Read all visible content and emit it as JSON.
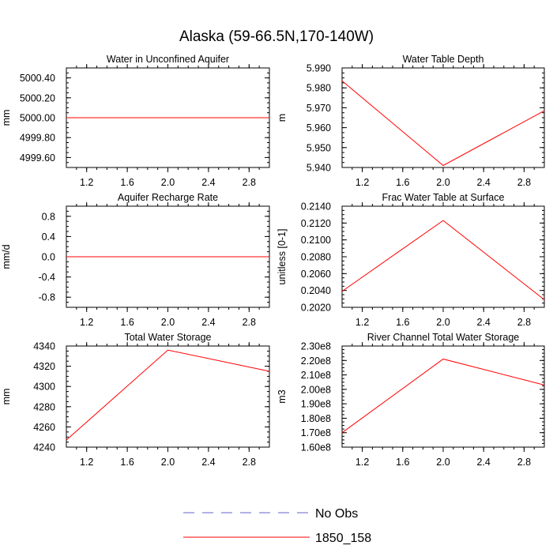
{
  "figure": {
    "title": "Alaska (59-66.5N,170-140W)"
  },
  "legend": {
    "placement": "bottom-center",
    "entries": [
      {
        "label": "No Obs",
        "color": "#6666cc",
        "style": "dashed"
      },
      {
        "label": "1850_158",
        "color": "#ff0000",
        "style": "solid"
      }
    ]
  },
  "chart_data": [
    {
      "type": "line",
      "title": "Water in Unconfined Aquifer",
      "ylabel": "mm",
      "xlim": [
        1.0,
        3.0
      ],
      "ylim": [
        4999.5,
        5000.5
      ],
      "xticks": [
        1.2,
        1.6,
        2.0,
        2.4,
        2.8
      ],
      "xtick_labels": [
        "1.2",
        "1.6",
        "2.0",
        "2.4",
        "2.8"
      ],
      "yticks": [
        4999.6,
        4999.8,
        5000.0,
        5000.2,
        5000.4
      ],
      "ytick_labels": [
        "4999.60",
        "4999.80",
        "5000.00",
        "5000.20",
        "5000.40"
      ],
      "series": [
        {
          "name": "1850_158",
          "x": [
            1,
            2,
            3
          ],
          "y": [
            5000.0,
            5000.0,
            5000.0
          ]
        }
      ]
    },
    {
      "type": "line",
      "title": "Water Table Depth",
      "ylabel": "m",
      "xlim": [
        1.0,
        3.0
      ],
      "ylim": [
        5.94,
        5.99
      ],
      "xticks": [
        1.2,
        1.6,
        2.0,
        2.4,
        2.8
      ],
      "xtick_labels": [
        "1.2",
        "1.6",
        "2.0",
        "2.4",
        "2.8"
      ],
      "yticks": [
        5.94,
        5.95,
        5.96,
        5.97,
        5.98,
        5.99
      ],
      "ytick_labels": [
        "5.940",
        "5.950",
        "5.960",
        "5.970",
        "5.980",
        "5.990"
      ],
      "series": [
        {
          "name": "1850_158",
          "x": [
            1,
            2,
            3
          ],
          "y": [
            5.9835,
            5.941,
            5.9685
          ]
        }
      ]
    },
    {
      "type": "line",
      "title": "Aquifer Recharge Rate",
      "ylabel": "mm/d",
      "xlim": [
        1.0,
        3.0
      ],
      "ylim": [
        -1.0,
        1.0
      ],
      "xticks": [
        1.2,
        1.6,
        2.0,
        2.4,
        2.8
      ],
      "xtick_labels": [
        "1.2",
        "1.6",
        "2.0",
        "2.4",
        "2.8"
      ],
      "yticks": [
        -0.8,
        -0.4,
        0.0,
        0.4,
        0.8
      ],
      "ytick_labels": [
        "-0.8",
        "-0.4",
        "0.0",
        "0.4",
        "0.8"
      ],
      "series": [
        {
          "name": "1850_158",
          "x": [
            1,
            2,
            3
          ],
          "y": [
            0.0,
            0.0,
            0.0
          ]
        }
      ]
    },
    {
      "type": "line",
      "title": "Frac Water Table at Surface",
      "ylabel": "unitless [0-1]",
      "xlim": [
        1.0,
        3.0
      ],
      "ylim": [
        0.202,
        0.214
      ],
      "xticks": [
        1.2,
        1.6,
        2.0,
        2.4,
        2.8
      ],
      "xtick_labels": [
        "1.2",
        "1.6",
        "2.0",
        "2.4",
        "2.8"
      ],
      "yticks": [
        0.202,
        0.204,
        0.206,
        0.208,
        0.21,
        0.212,
        0.214
      ],
      "ytick_labels": [
        "0.2020",
        "0.2040",
        "0.2060",
        "0.2080",
        "0.2100",
        "0.2120",
        "0.2140"
      ],
      "series": [
        {
          "name": "1850_158",
          "x": [
            1,
            2,
            3
          ],
          "y": [
            0.2039,
            0.2123,
            0.2029
          ]
        }
      ]
    },
    {
      "type": "line",
      "title": "Total Water Storage",
      "ylabel": "mm",
      "xlim": [
        1.0,
        3.0
      ],
      "ylim": [
        4240,
        4340
      ],
      "xticks": [
        1.2,
        1.6,
        2.0,
        2.4,
        2.8
      ],
      "xtick_labels": [
        "1.2",
        "1.6",
        "2.0",
        "2.4",
        "2.8"
      ],
      "yticks": [
        4240,
        4260,
        4280,
        4300,
        4320,
        4340
      ],
      "ytick_labels": [
        "4240",
        "4260",
        "4280",
        "4300",
        "4320",
        "4340"
      ],
      "series": [
        {
          "name": "1850_158",
          "x": [
            1,
            2,
            3
          ],
          "y": [
            4247,
            4336,
            4315
          ]
        }
      ]
    },
    {
      "type": "line",
      "title": "River Channel Total Water Storage",
      "ylabel": "m3",
      "xlim": [
        1.0,
        3.0
      ],
      "ylim": [
        160000000.0,
        230000000.0
      ],
      "xticks": [
        1.2,
        1.6,
        2.0,
        2.4,
        2.8
      ],
      "xtick_labels": [
        "1.2",
        "1.6",
        "2.0",
        "2.4",
        "2.8"
      ],
      "yticks": [
        160000000.0,
        170000000.0,
        180000000.0,
        190000000.0,
        200000000.0,
        210000000.0,
        220000000.0,
        230000000.0
      ],
      "ytick_labels": [
        "1.60e8",
        "1.70e8",
        "1.80e8",
        "1.90e8",
        "2.00e8",
        "2.10e8",
        "2.20e8",
        "2.30e8"
      ],
      "series": [
        {
          "name": "1850_158",
          "x": [
            1,
            2,
            3
          ],
          "y": [
            170000000.0,
            221000000.0,
            203000000.0
          ]
        }
      ]
    }
  ]
}
